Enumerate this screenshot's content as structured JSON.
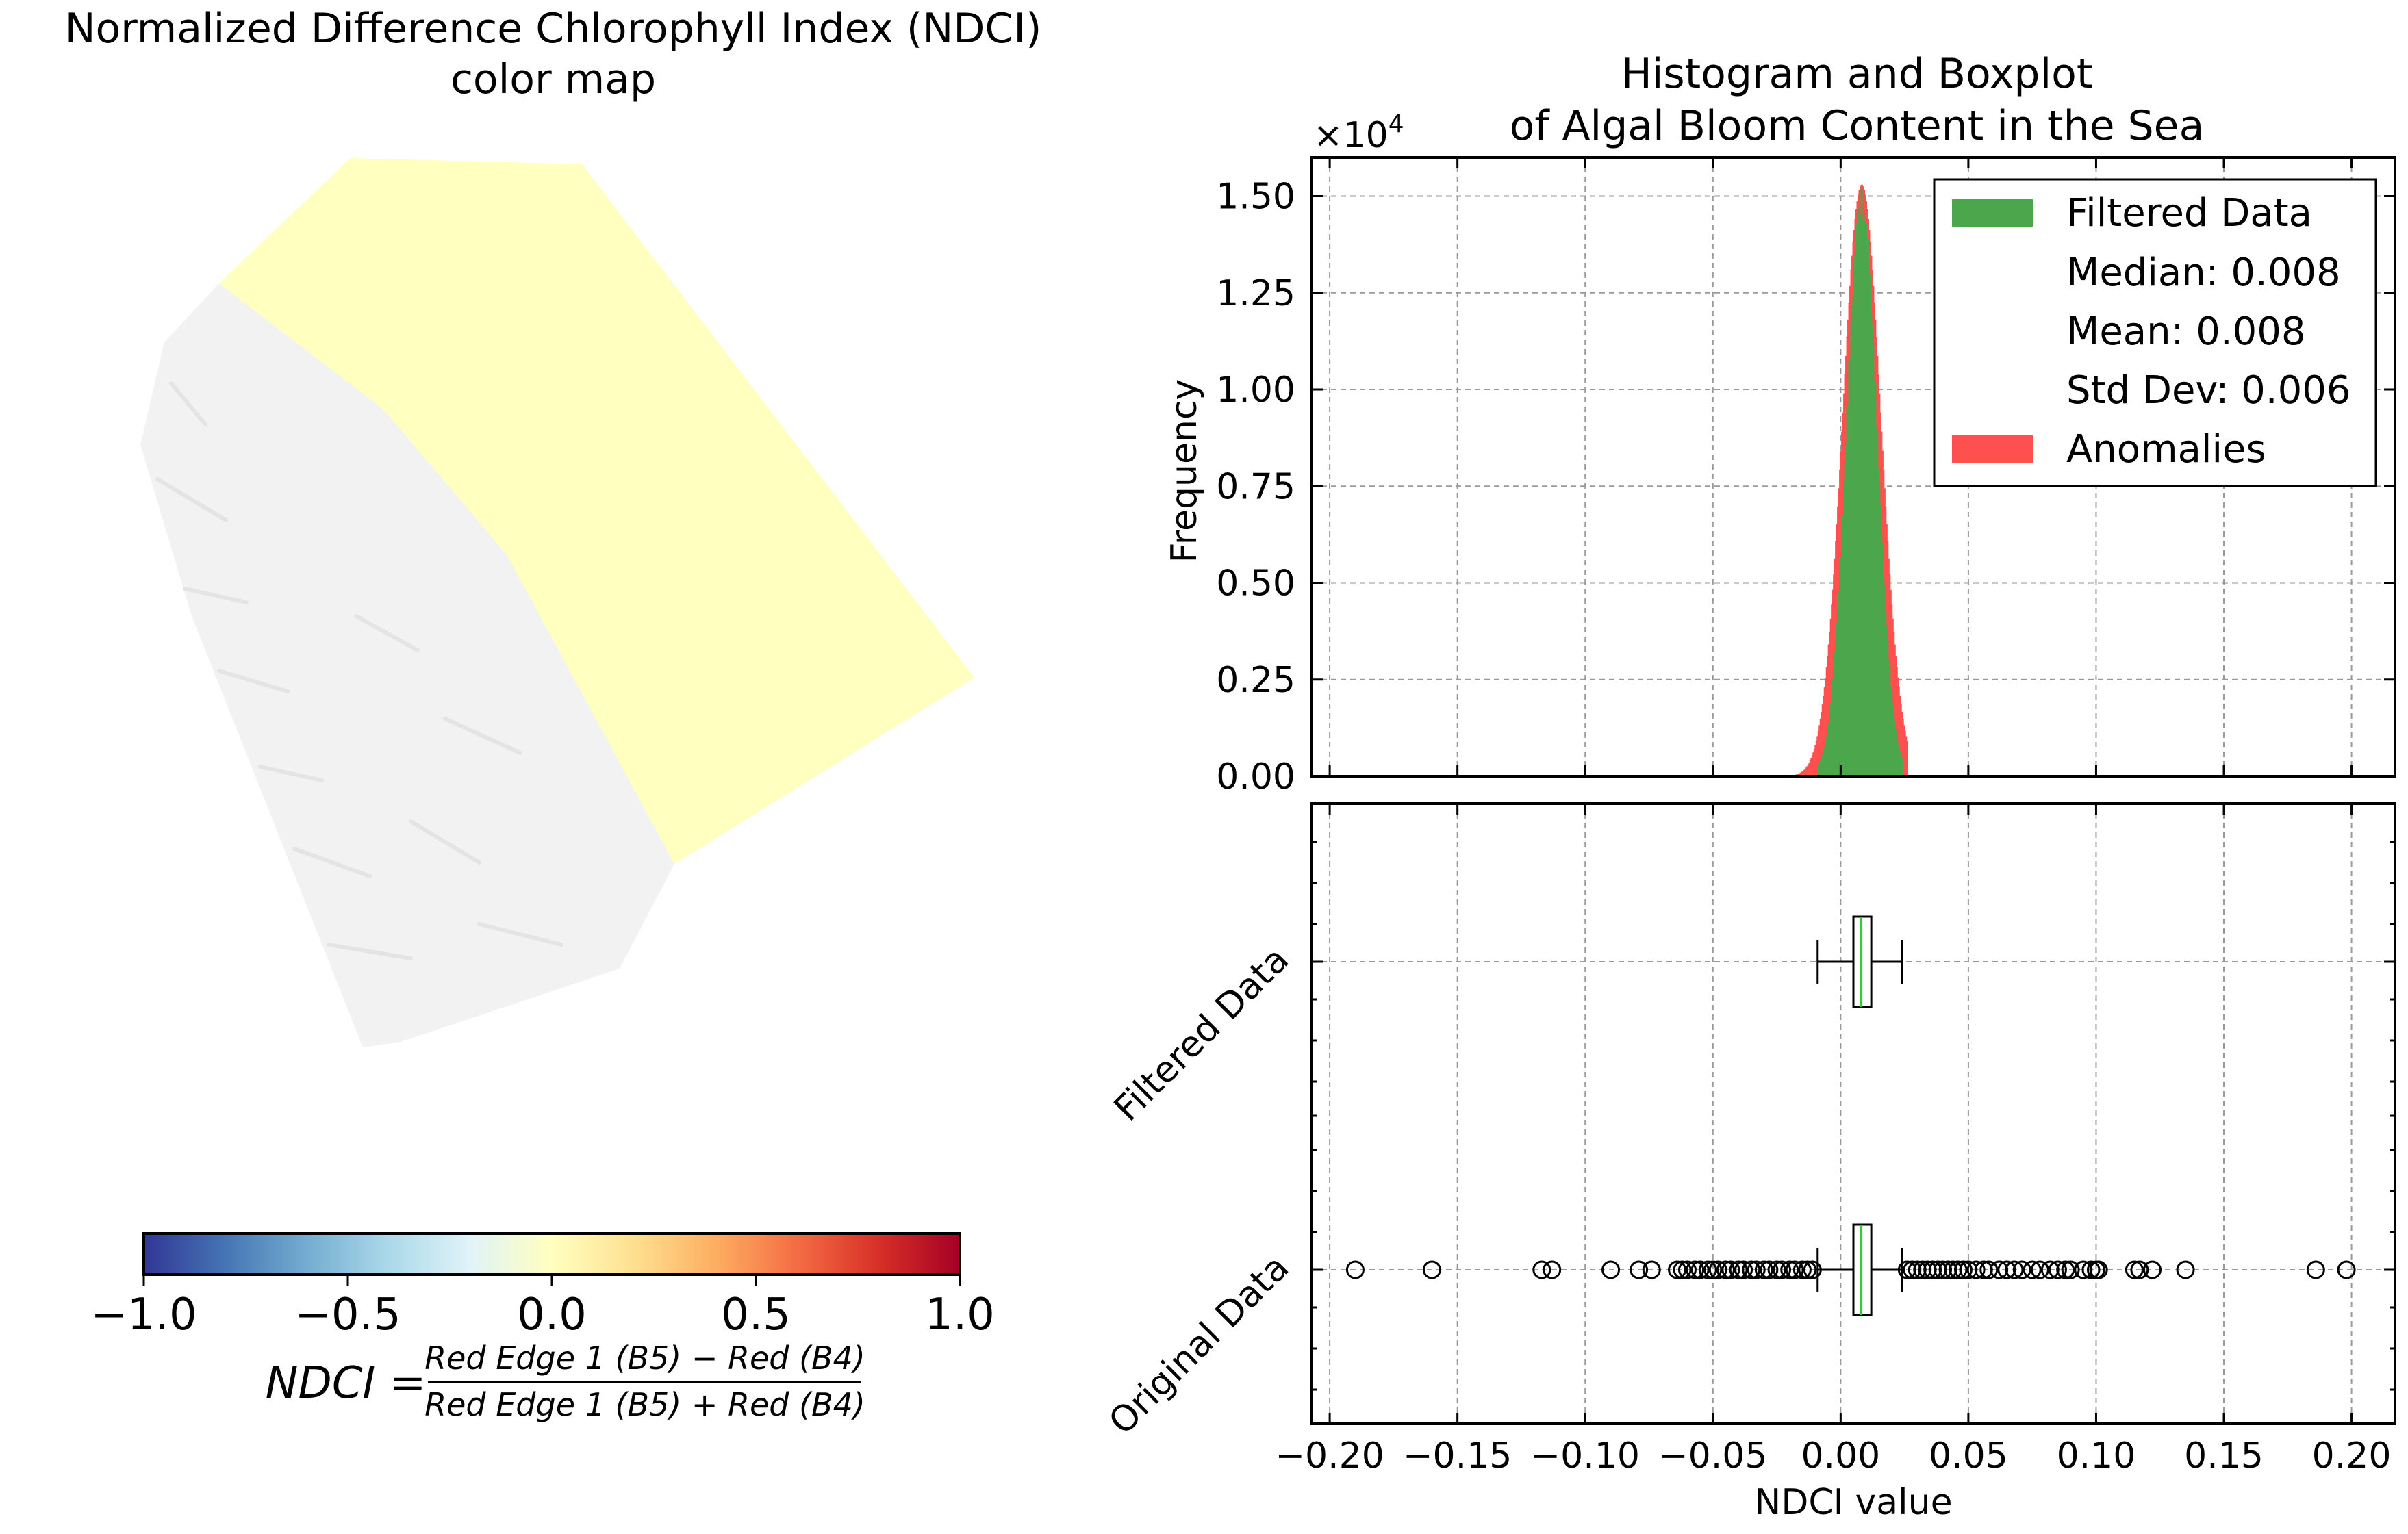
{
  "map_panel": {
    "title_line1": "Normalized Difference Chlorophyll Index (NDCI)",
    "title_line2": "color map",
    "water_color": "#ffffbf",
    "land_color": "#f2f2f2",
    "colorbar": {
      "colormap": "RdYlBu_r",
      "stops": [
        "#313695",
        "#4575b4",
        "#74add1",
        "#abd9e9",
        "#e0f3f8",
        "#ffffbf",
        "#fee090",
        "#fdae61",
        "#f46d43",
        "#d73027",
        "#a50026"
      ],
      "vmin": -1.0,
      "vmax": 1.0,
      "ticks": [
        -1.0,
        -0.5,
        0.0,
        0.5,
        1.0
      ],
      "tick_labels": [
        "−1.0",
        "−0.5",
        "0.0",
        "0.5",
        "1.0"
      ]
    },
    "formula": {
      "lhs": "NDCI =",
      "numerator": "Red Edge 1 (B5) − Red (B4)",
      "denominator": "Red Edge 1 (B5) + Red (B4)"
    }
  },
  "chart_data": [
    {
      "type": "histogram",
      "title_line1": "Histogram and Boxplot",
      "title_line2": "of Algal Bloom Content in the Sea",
      "ylabel": "Frequency",
      "offset_label": "×10",
      "offset_exponent": "4",
      "xlim": [
        -0.207,
        0.217
      ],
      "ylim": [
        0,
        16000
      ],
      "yticks": [
        0,
        2500,
        5000,
        7500,
        10000,
        12500,
        15000
      ],
      "ytick_labels": [
        "0.00",
        "0.25",
        "0.50",
        "0.75",
        "1.00",
        "1.25",
        "1.50"
      ],
      "xticks": [
        -0.2,
        -0.15,
        -0.1,
        -0.05,
        0.0,
        0.05,
        0.1,
        0.15,
        0.2
      ],
      "grid": true,
      "legend_position": "upper right",
      "legend": [
        {
          "label": "Filtered Data",
          "color": "#4ca64c"
        },
        {
          "label": "Median: 0.008"
        },
        {
          "label": "Mean: 0.008"
        },
        {
          "label": "Std Dev: 0.006"
        },
        {
          "label": "Anomalies",
          "color": "#ff5050"
        }
      ],
      "series": [
        {
          "name": "Filtered Data",
          "color": "#4ca64c",
          "mean": 0.008,
          "median": 0.008,
          "std": 0.006,
          "range": [
            -0.009,
            0.024
          ],
          "peak": 15300
        },
        {
          "name": "Anomalies",
          "color": "#ff5050",
          "range": [
            -0.025,
            0.026
          ]
        }
      ]
    },
    {
      "type": "boxplot",
      "xlabel": "NDCI value",
      "xlim": [
        -0.207,
        0.217
      ],
      "xticks": [
        -0.2,
        -0.15,
        -0.1,
        -0.05,
        0.0,
        0.05,
        0.1,
        0.15,
        0.2
      ],
      "xtick_labels": [
        "−0.20",
        "−0.15",
        "−0.10",
        "−0.05",
        "0.00",
        "0.05",
        "0.10",
        "0.15",
        "0.20"
      ],
      "grid": true,
      "median_color": "#33cc33",
      "boxes": [
        {
          "label": "Filtered Data",
          "whisker_low": -0.009,
          "q1": 0.005,
          "median": 0.008,
          "q3": 0.012,
          "whisker_high": 0.024,
          "outliers": []
        },
        {
          "label": "Original Data",
          "whisker_low": -0.009,
          "q1": 0.005,
          "median": 0.008,
          "q3": 0.012,
          "whisker_high": 0.024,
          "outliers": [
            -0.19,
            -0.16,
            -0.117,
            -0.113,
            -0.09,
            -0.079,
            -0.074,
            -0.064,
            -0.062,
            -0.06,
            -0.057,
            -0.055,
            -0.052,
            -0.05,
            -0.048,
            -0.045,
            -0.043,
            -0.04,
            -0.038,
            -0.035,
            -0.033,
            -0.03,
            -0.028,
            -0.025,
            -0.023,
            -0.02,
            -0.018,
            -0.015,
            -0.013,
            -0.011,
            0.026,
            0.028,
            0.03,
            0.032,
            0.034,
            0.036,
            0.038,
            0.04,
            0.042,
            0.044,
            0.046,
            0.048,
            0.05,
            0.053,
            0.056,
            0.058,
            0.062,
            0.065,
            0.068,
            0.071,
            0.075,
            0.078,
            0.082,
            0.085,
            0.088,
            0.09,
            0.095,
            0.098,
            0.1,
            0.101,
            0.115,
            0.117,
            0.122,
            0.135,
            0.186,
            0.198
          ]
        }
      ]
    }
  ]
}
